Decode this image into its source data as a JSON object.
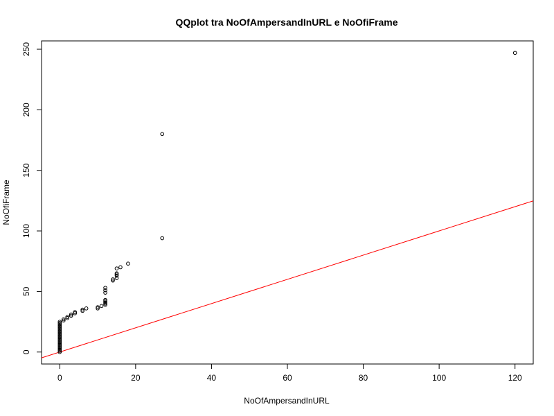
{
  "chart_data": {
    "type": "scatter",
    "title": "QQplot tra NoOfAmpersandInURL e NoOfiFrame",
    "xlabel": "NoOfAmpersandInURL",
    "ylabel": "NoOfiFrame",
    "xlim": [
      -4.8,
      124.8
    ],
    "ylim": [
      -9.88,
      256.88
    ],
    "xticks": [
      0,
      20,
      40,
      60,
      80,
      100,
      120
    ],
    "yticks": [
      0,
      50,
      100,
      150,
      200,
      250
    ],
    "grid": false,
    "reference_line": {
      "intercept": 0,
      "slope": 1,
      "color": "#ff0000"
    },
    "point_color": "#000000",
    "points": [
      [
        0,
        0
      ],
      [
        0,
        1
      ],
      [
        0,
        2
      ],
      [
        0,
        3
      ],
      [
        0,
        4
      ],
      [
        0,
        5
      ],
      [
        0,
        6
      ],
      [
        0,
        7
      ],
      [
        0,
        8
      ],
      [
        0,
        9
      ],
      [
        0,
        10
      ],
      [
        0,
        11
      ],
      [
        0,
        12
      ],
      [
        0,
        13
      ],
      [
        0,
        14
      ],
      [
        0,
        15
      ],
      [
        0,
        16
      ],
      [
        0,
        17
      ],
      [
        0,
        18
      ],
      [
        0,
        19
      ],
      [
        0,
        20
      ],
      [
        0,
        21
      ],
      [
        0,
        22
      ],
      [
        0,
        23
      ],
      [
        0,
        24
      ],
      [
        0,
        25
      ],
      [
        1,
        26
      ],
      [
        1,
        27
      ],
      [
        2,
        28
      ],
      [
        2,
        29
      ],
      [
        3,
        30
      ],
      [
        3,
        31
      ],
      [
        4,
        32
      ],
      [
        4,
        33
      ],
      [
        6,
        34
      ],
      [
        6,
        35
      ],
      [
        7,
        36
      ],
      [
        10,
        36
      ],
      [
        10,
        37
      ],
      [
        11,
        38
      ],
      [
        12,
        39
      ],
      [
        12,
        40
      ],
      [
        12,
        41
      ],
      [
        12,
        42
      ],
      [
        12,
        43
      ],
      [
        12,
        49
      ],
      [
        12,
        51
      ],
      [
        12,
        53
      ],
      [
        14,
        59
      ],
      [
        14,
        60
      ],
      [
        15,
        61
      ],
      [
        15,
        63
      ],
      [
        15,
        64
      ],
      [
        15,
        65
      ],
      [
        15,
        69
      ],
      [
        16,
        70
      ],
      [
        18,
        73
      ],
      [
        27,
        94
      ],
      [
        27,
        180
      ],
      [
        120,
        247
      ]
    ]
  }
}
